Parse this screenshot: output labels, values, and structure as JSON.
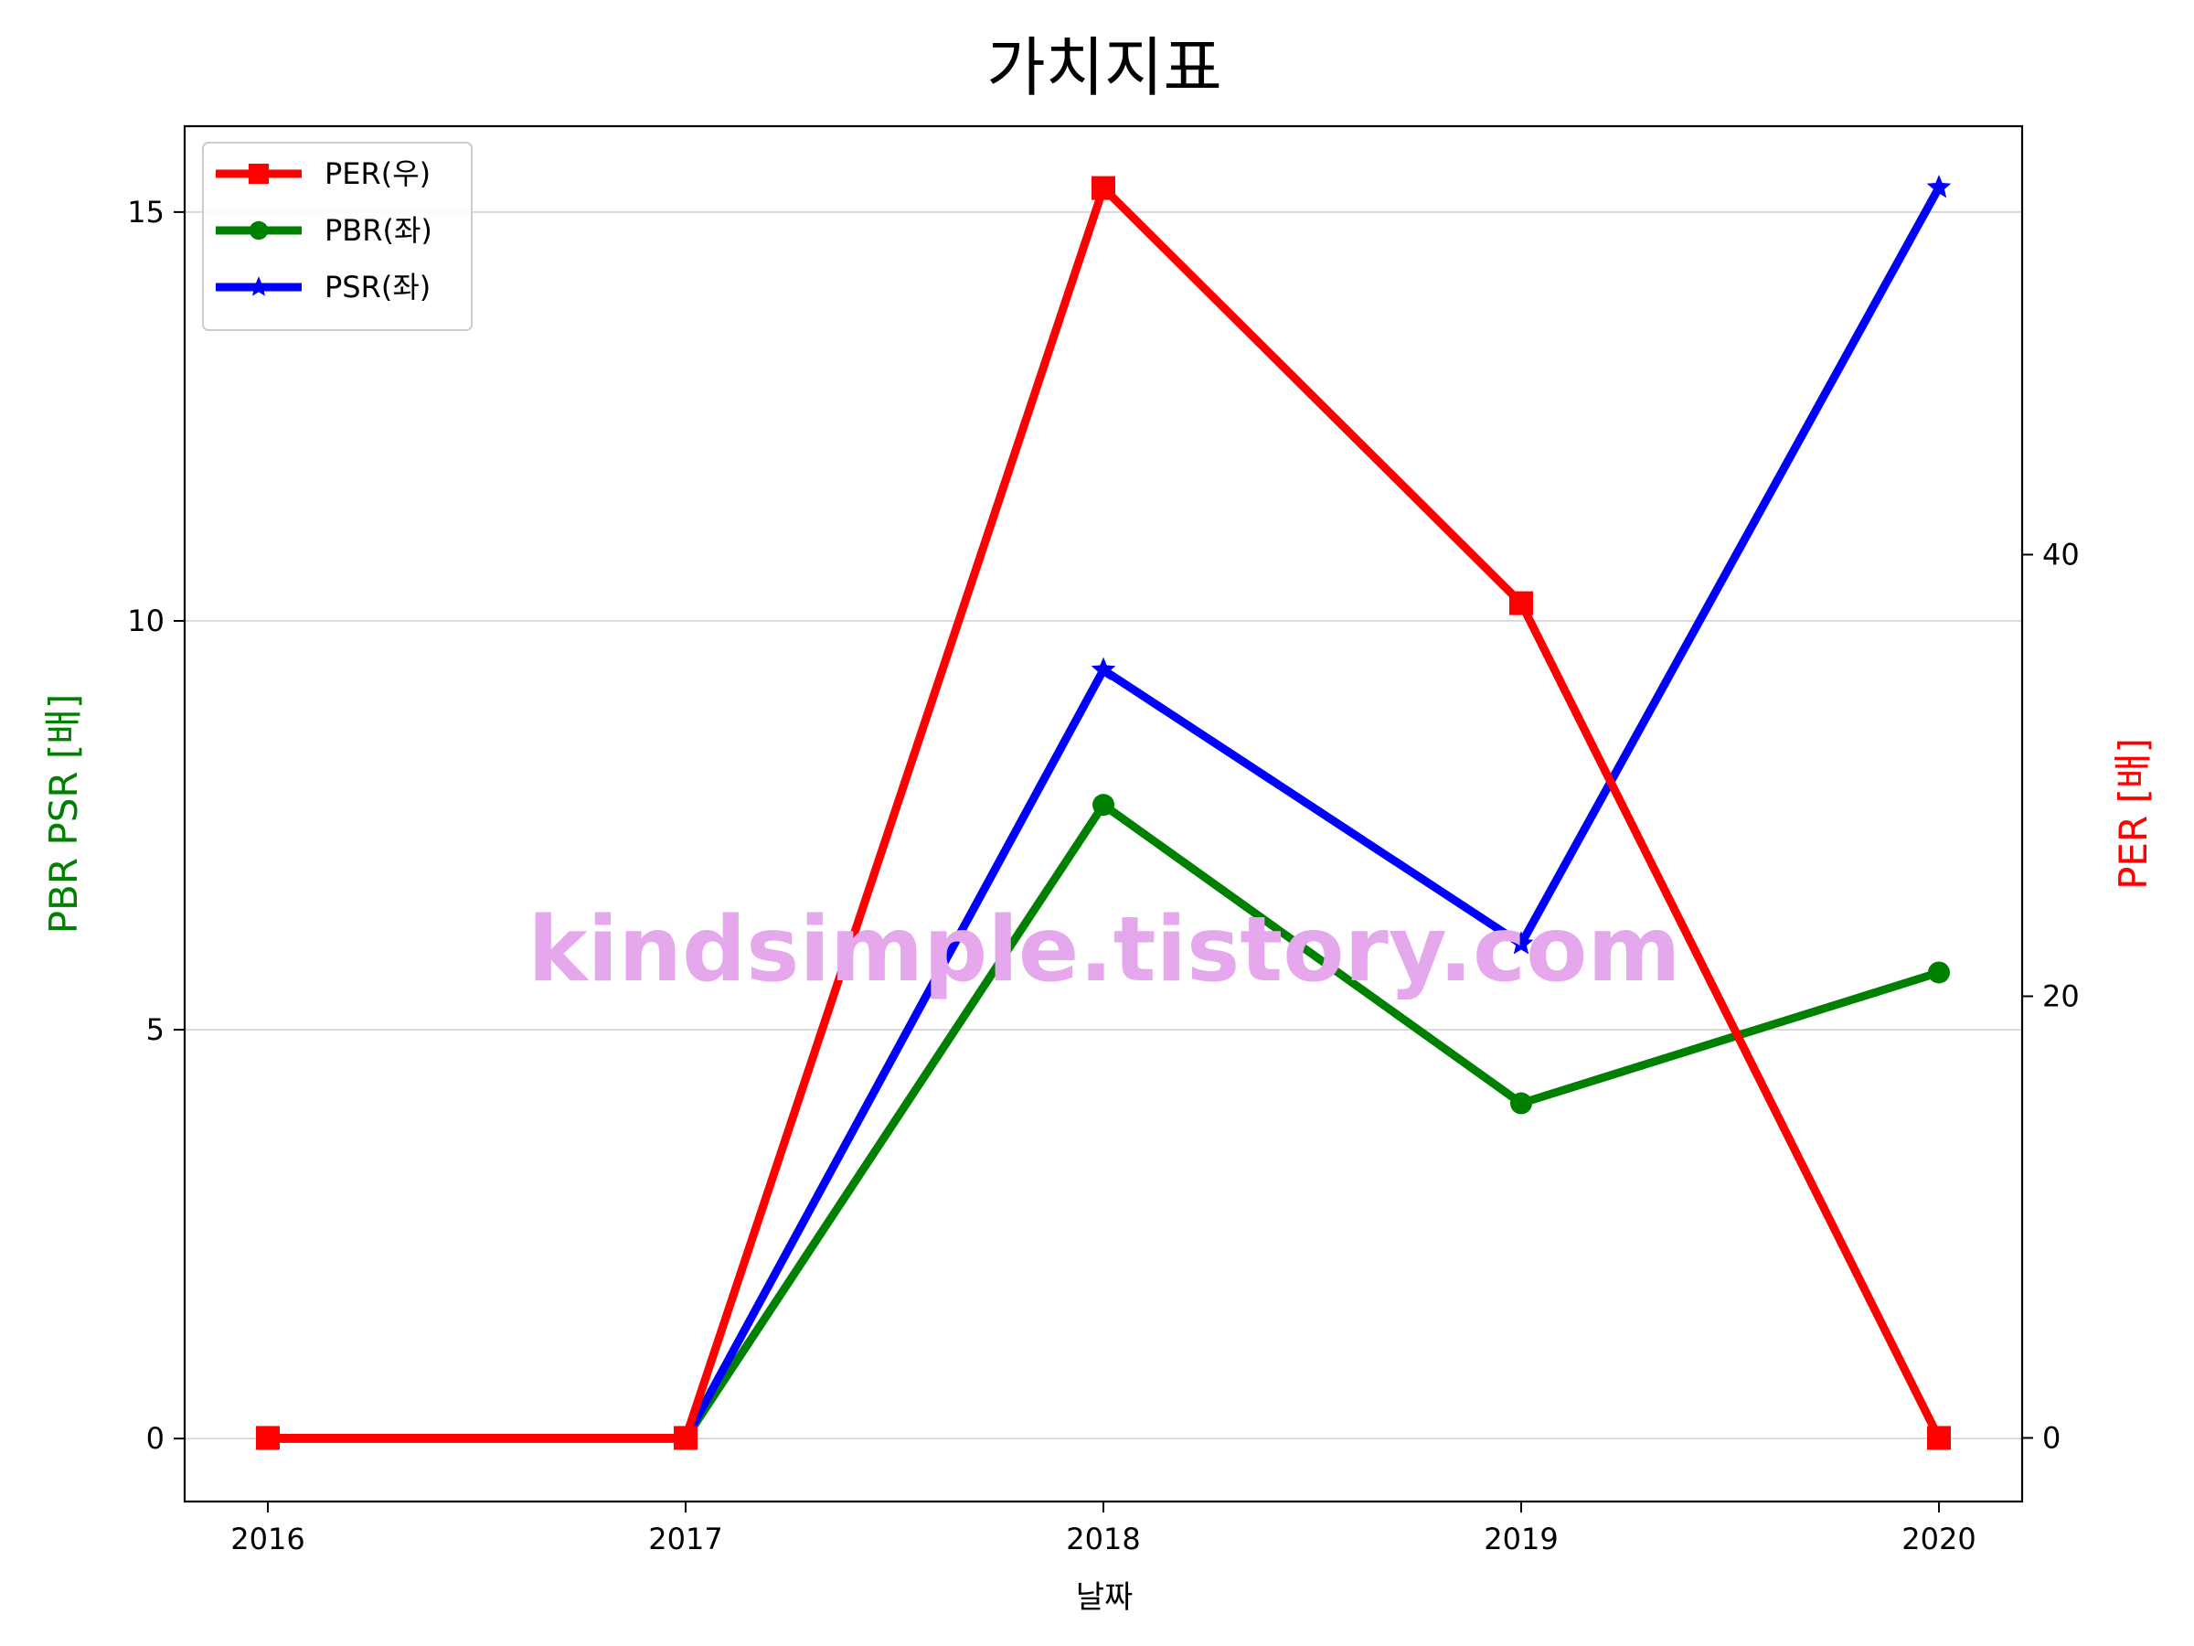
{
  "chart_data": {
    "type": "line",
    "title": "가치지표",
    "xlabel": "날짜",
    "ylabel_left": "PBR PSR [배]",
    "ylabel_right": "PER [배]",
    "ylabel_left_color": "#008000",
    "ylabel_right_color": "#ff0000",
    "categories": [
      "2016",
      "2017",
      "2018",
      "2019",
      "2020"
    ],
    "yticks_left": [
      0,
      5,
      10,
      15
    ],
    "yticks_right": [
      0,
      20,
      40
    ],
    "ylim_left": [
      -0.77,
      16.05
    ],
    "ylim_right": [
      -2.88,
      59.4
    ],
    "grid": "horizontal",
    "legend_position": "upper-left",
    "series": [
      {
        "name": "PER(우)",
        "axis": "right",
        "color": "#ff0000",
        "marker": "square",
        "values": [
          0,
          0,
          56.6,
          37.8,
          0
        ]
      },
      {
        "name": "PBR(좌)",
        "axis": "left",
        "color": "#008000",
        "marker": "circle",
        "values": [
          0,
          0,
          7.75,
          4.1,
          5.7
        ]
      },
      {
        "name": "PSR(좌)",
        "axis": "left",
        "color": "#0000ff",
        "marker": "star",
        "values": [
          0,
          0,
          9.4,
          6.05,
          15.3
        ]
      }
    ]
  },
  "watermark": {
    "text": "kindsimple.tistory.com",
    "color": "#e6a8ec"
  }
}
